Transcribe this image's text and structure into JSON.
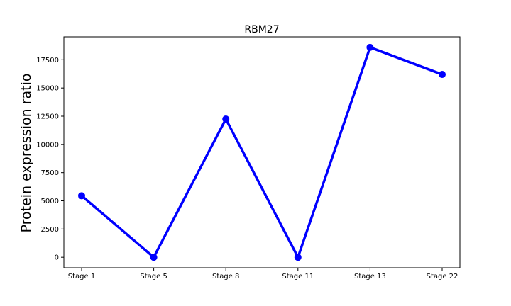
{
  "chart_data": {
    "type": "line",
    "title": "RBM27",
    "xlabel": "",
    "ylabel": "Protein expression ratio",
    "categories": [
      "Stage 1",
      "Stage 5",
      "Stage 8",
      "Stage 11",
      "Stage 13",
      "Stage 22"
    ],
    "series": [
      {
        "values": [
          5450,
          0,
          12250,
          0,
          18600,
          16200
        ],
        "color": "#0000ff"
      }
    ],
    "yticks": [
      0,
      2500,
      5000,
      7500,
      10000,
      12500,
      15000,
      17500
    ],
    "ytick_labels": [
      "0",
      "2500",
      "5000",
      "7500",
      "10000",
      "12500",
      "15000",
      "17500"
    ],
    "ylim": [
      -930,
      19530
    ],
    "grid": false,
    "legend": "none"
  }
}
